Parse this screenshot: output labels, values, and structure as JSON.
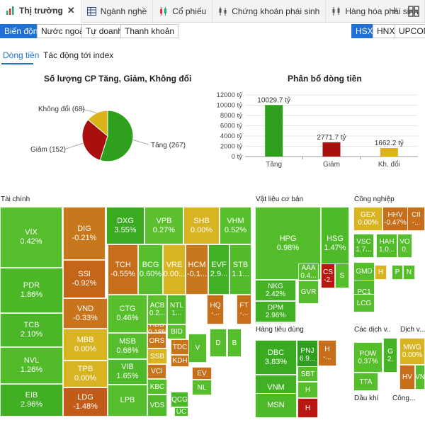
{
  "tabs": [
    {
      "label": "Thị trường",
      "active": true,
      "icon": "market-icon"
    },
    {
      "label": "Ngành nghề",
      "active": false,
      "icon": "table-icon"
    },
    {
      "label": "Cổ phiếu",
      "active": false,
      "icon": "stock-chart-icon"
    },
    {
      "label": "Chứng khoán phái sinh",
      "active": false,
      "icon": "derivative-icon"
    },
    {
      "label": "Hàng hóa phái sinh",
      "active": false,
      "icon": "commodity-icon"
    }
  ],
  "subtabs_left": [
    "Biến động",
    "Nước ngoài",
    "Tự doanh",
    "Thanh khoản"
  ],
  "subtabs_right": [
    "HSX",
    "HNX",
    "UPCOM"
  ],
  "inner_tabs": [
    "Dòng tiền",
    "Tác động tới index"
  ],
  "colors": {
    "up": "#43a82a",
    "up_strong": "#2f9e1f",
    "flat": "#d9b422",
    "down": "#b5140e",
    "mid_down": "#c7741a",
    "accent": "#1f6fd6"
  },
  "pie_title": "Số lượng CP Tăng, Giảm, Không đổi",
  "bar_title": "Phân bổ dòng tiền",
  "chart_data": [
    {
      "type": "pie",
      "title": "Số lượng CP Tăng, Giảm, Không đổi",
      "slices": [
        {
          "label": "Tăng (267)",
          "value": 267,
          "color": "#2fa01e"
        },
        {
          "label": "Giảm (152)",
          "value": 152,
          "color": "#a8100d"
        },
        {
          "label": "Không đổi (68)",
          "value": 68,
          "color": "#d9b21c"
        }
      ]
    },
    {
      "type": "bar",
      "title": "Phân bổ dòng tiền",
      "categories": [
        "Tăng",
        "Giảm",
        "Kh. đổi"
      ],
      "values": [
        10029.7,
        2771.7,
        1662.2
      ],
      "value_labels": [
        "10029.7 tỷ",
        "2771.7 tỷ",
        "1662.2 tỷ"
      ],
      "colors": [
        "#2fa01e",
        "#a8100d",
        "#d9b21c"
      ],
      "ylim": [
        0,
        12000
      ],
      "yticks": [
        0,
        2000,
        4000,
        6000,
        8000,
        10000,
        12000
      ],
      "ytick_labels": [
        "0 tỷ",
        "2000 tỷ",
        "4000 tỷ",
        "6000 tỷ",
        "8000 tỷ",
        "10000 tỷ",
        "12000 tỷ"
      ]
    }
  ],
  "sectors": [
    {
      "name": "Tài chính"
    },
    {
      "name": "Vật liệu cơ bản"
    },
    {
      "name": "Công nghiệp"
    },
    {
      "name": "Hàng tiêu dùng"
    },
    {
      "name": "Các dịch v..."
    },
    {
      "name": "Dịch v..."
    },
    {
      "name": "Dầu khí"
    },
    {
      "name": "Công..."
    }
  ],
  "cells": [
    {
      "sym": "VIX",
      "pct": "0.42%",
      "c": "#56be2c"
    },
    {
      "sym": "PDR",
      "pct": "1.86%",
      "c": "#4cb828"
    },
    {
      "sym": "TCB",
      "pct": "2.10%",
      "c": "#4ab628"
    },
    {
      "sym": "NVL",
      "pct": "1.26%",
      "c": "#52bb2a"
    },
    {
      "sym": "EIB",
      "pct": "2.96%",
      "c": "#3fae22"
    },
    {
      "sym": "DIG",
      "pct": "-0.21%",
      "c": "#c8781c"
    },
    {
      "sym": "SSI",
      "pct": "-0.92%",
      "c": "#c4661a"
    },
    {
      "sym": "VND",
      "pct": "-0.33%",
      "c": "#c8741c"
    },
    {
      "sym": "MBB",
      "pct": "0.00%",
      "c": "#d9b422"
    },
    {
      "sym": "TPB",
      "pct": "0.00%",
      "c": "#d9b422"
    },
    {
      "sym": "LDG",
      "pct": "-1.48%",
      "c": "#c25a18"
    },
    {
      "sym": "DXG",
      "pct": "3.55%",
      "c": "#3aab20"
    },
    {
      "sym": "VPB",
      "pct": "0.27%",
      "c": "#5cc02e"
    },
    {
      "sym": "SHB",
      "pct": "0.00%",
      "c": "#d9b422"
    },
    {
      "sym": "VHM",
      "pct": "0.52%",
      "c": "#58bf2c"
    },
    {
      "sym": "TCH",
      "pct": "-0.55%",
      "c": "#c66e1a"
    },
    {
      "sym": "BCG",
      "pct": "0.60%",
      "c": "#56be2c"
    },
    {
      "sym": "VRE",
      "pct": "0.00...",
      "c": "#d9b422"
    },
    {
      "sym": "HCM",
      "pct": "-0.1...",
      "c": "#c8781c"
    },
    {
      "sym": "EVF",
      "pct": "2.9...",
      "c": "#42b024"
    },
    {
      "sym": "STB",
      "pct": "1.1...",
      "c": "#52bb2a"
    },
    {
      "sym": "CTG",
      "pct": "0.46%",
      "c": "#58bf2c"
    },
    {
      "sym": "ACB",
      "pct": "0.2...",
      "c": "#5cc02e"
    },
    {
      "sym": "NTL",
      "pct": "1...",
      "c": "#50ba2a"
    },
    {
      "sym": "HQ",
      "pct": "-...",
      "c": "#c66e1a"
    },
    {
      "sym": "FT",
      "pct": "-...",
      "c": "#c66e1a"
    },
    {
      "sym": "MSB",
      "pct": "0.68%",
      "c": "#56be2c"
    },
    {
      "sym": "HDB",
      "pct": "-0.18%",
      "c": "#c8781c"
    },
    {
      "sym": "VIB",
      "pct": "1.65%",
      "c": "#4eb929"
    },
    {
      "sym": "LPB",
      "pct": "",
      "c": "#56be2c"
    },
    {
      "sym": "ORS",
      "pct": "",
      "c": "#c8741c"
    },
    {
      "sym": "SSB",
      "pct": "",
      "c": "#d9b422"
    },
    {
      "sym": "VCI",
      "pct": "",
      "c": "#c8741c"
    },
    {
      "sym": "KBC",
      "pct": "",
      "c": "#56be2c"
    },
    {
      "sym": "VDS",
      "pct": "",
      "c": "#50ba2a"
    },
    {
      "sym": "BID",
      "pct": "",
      "c": "#5cc02e"
    },
    {
      "sym": "TDC",
      "pct": "",
      "c": "#c8741c"
    },
    {
      "sym": "KDH",
      "pct": "",
      "c": "#c8741c"
    },
    {
      "sym": "EV",
      "pct": "",
      "c": "#c66e1a"
    },
    {
      "sym": "NL",
      "pct": "",
      "c": "#56be2c"
    },
    {
      "sym": "QCG",
      "pct": "",
      "c": "#4cb828"
    },
    {
      "sym": "UC",
      "pct": "",
      "c": "#4cb828"
    },
    {
      "sym": "V",
      "pct": "",
      "c": "#56be2c"
    },
    {
      "sym": "D",
      "pct": "",
      "c": "#56be2c"
    },
    {
      "sym": "B",
      "pct": "",
      "c": "#56be2c"
    },
    {
      "sym": "HPG",
      "pct": "0.98%",
      "c": "#54bd2b"
    },
    {
      "sym": "HSG",
      "pct": "1.47%",
      "c": "#4eb929"
    },
    {
      "sym": "NKG",
      "pct": "2.42%",
      "c": "#46b326"
    },
    {
      "sym": "DPM",
      "pct": "2.96%",
      "c": "#42b024"
    },
    {
      "sym": "DCM",
      "pct": "1.21%",
      "c": "#52bb2a"
    },
    {
      "sym": "AAA",
      "pct": "0.4...",
      "c": "#58bf2c"
    },
    {
      "sym": "GVR",
      "pct": "",
      "c": "#56be2c"
    },
    {
      "sym": "CS",
      "pct": "-2.",
      "c": "#b8180f"
    },
    {
      "sym": "S",
      "pct": "",
      "c": "#56be2c"
    },
    {
      "sym": "GEX",
      "pct": "0.00%",
      "c": "#d9b422"
    },
    {
      "sym": "HHV",
      "pct": "-0.47%",
      "c": "#c66e1a"
    },
    {
      "sym": "CII",
      "pct": "-...",
      "c": "#c66e1a"
    },
    {
      "sym": "VSC",
      "pct": "1.7...",
      "c": "#4eb929"
    },
    {
      "sym": "HAH",
      "pct": "1.0...",
      "c": "#52bb2a"
    },
    {
      "sym": "VO",
      "pct": "0.",
      "c": "#56be2c"
    },
    {
      "sym": "GMD",
      "pct": "",
      "c": "#56be2c"
    },
    {
      "sym": "H",
      "pct": "",
      "c": "#d9b422"
    },
    {
      "sym": "P",
      "pct": "",
      "c": "#56be2c"
    },
    {
      "sym": "N",
      "pct": "",
      "c": "#56be2c"
    },
    {
      "sym": "PC1",
      "pct": "",
      "c": "#50ba2a"
    },
    {
      "sym": "LCG",
      "pct": "",
      "c": "#56be2c"
    },
    {
      "sym": "DBC",
      "pct": "3.83%",
      "c": "#3aab20"
    },
    {
      "sym": "PNJ",
      "pct": "6.9...",
      "c": "#2f9e1f"
    },
    {
      "sym": "H",
      "pct": "-...",
      "c": "#c66e1a"
    },
    {
      "sym": "VNM",
      "pct": "2.98%",
      "c": "#42b024"
    },
    {
      "sym": "SBT",
      "pct": "",
      "c": "#56be2c"
    },
    {
      "sym": "H",
      "pct": "",
      "c": "#56be2c"
    },
    {
      "sym": "MSN",
      "pct": "",
      "c": "#4eb929"
    },
    {
      "sym": "H",
      "pct": "",
      "c": "#b8180f"
    },
    {
      "sym": "POW",
      "pct": "0.37%",
      "c": "#58bf2c"
    },
    {
      "sym": "G",
      "pct": "2.",
      "c": "#46b326"
    },
    {
      "sym": "TTA",
      "pct": "",
      "c": "#56be2c"
    },
    {
      "sym": "MWG",
      "pct": "0.00%",
      "c": "#d9b422"
    },
    {
      "sym": "HV",
      "pct": "",
      "c": "#c66e1a"
    },
    {
      "sym": "VN",
      "pct": "",
      "c": "#56be2c"
    }
  ]
}
